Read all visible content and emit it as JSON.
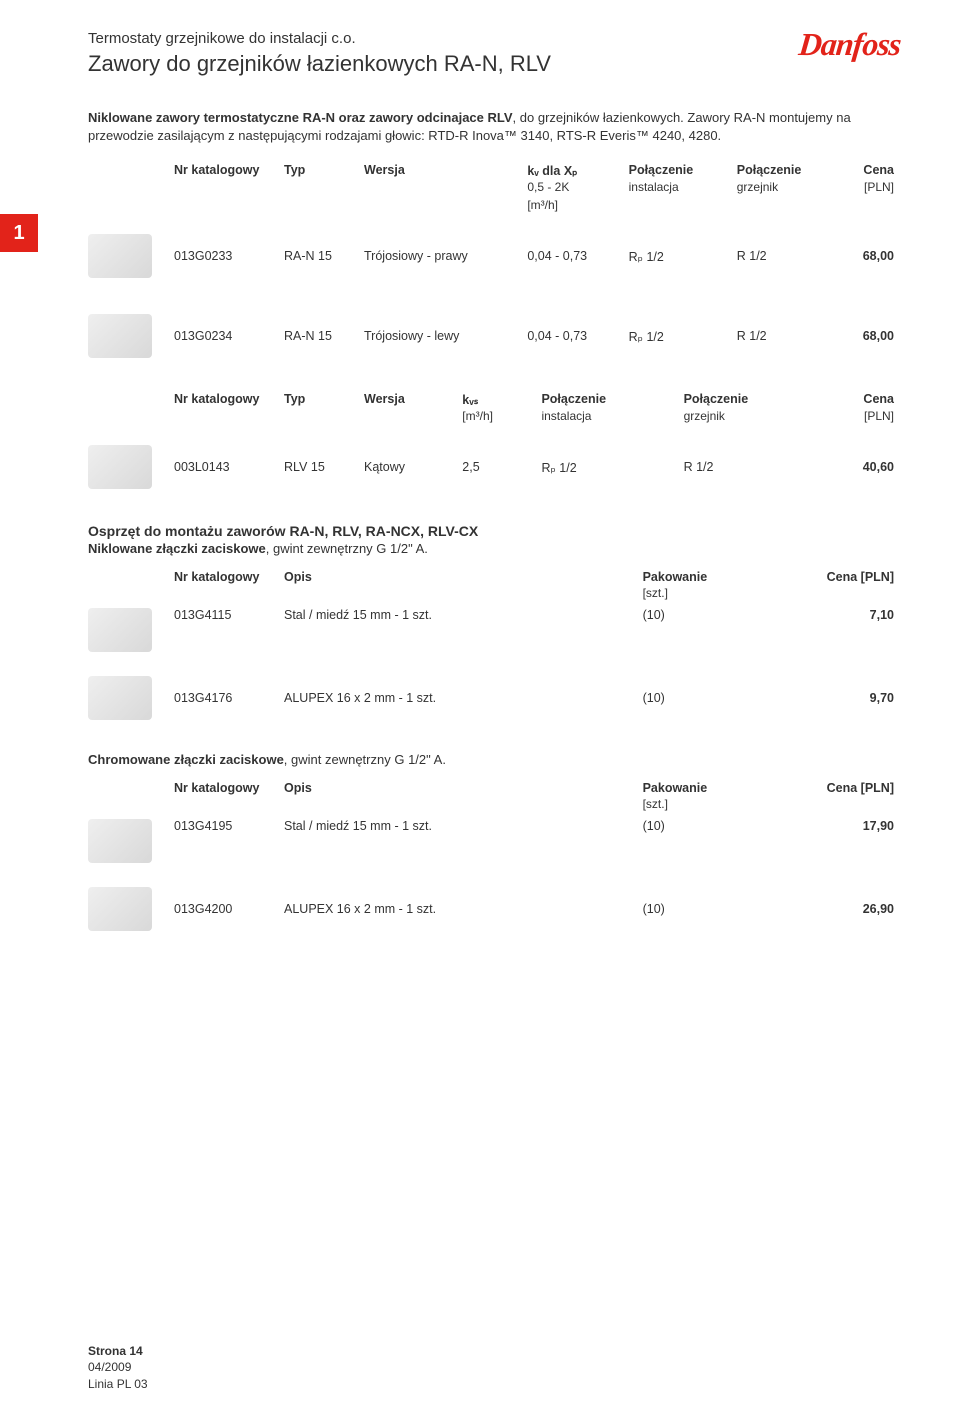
{
  "header": {
    "category": "Termostaty grzejnikowe do instalacji c.o.",
    "title": "Zawory do grzejników łazienkowych RA-N, RLV",
    "logo": "Danfoss"
  },
  "intro": {
    "bold": "Niklowane zawory termostatyczne RA-N oraz zawory odcinajace RLV",
    "rest": ", do grzejników łazienkowych. Zawory RA-N montujemy na przewodzie zasilającym z następującymi rodzajami głowic: RTD-R Inova™ 3140, RTS-R Everis™ 4240, 4280."
  },
  "tab": "1",
  "table1": {
    "headers": {
      "sku": "Nr katalogowy",
      "typ": "Typ",
      "wersja": "Wersja",
      "kv1": "kᵥ dla Xₚ",
      "kv2": "0,5 - 2K",
      "kv3": "[m³/h]",
      "conn_inst": "Połączenie",
      "conn_inst2": "instalacja",
      "conn_grz": "Połączenie",
      "conn_grz2": "grzejnik",
      "cena": "Cena",
      "cena2": "[PLN]"
    },
    "rows": [
      {
        "sku": "013G0233",
        "typ": "RA-N 15",
        "wersja": "Trójosiowy - prawy",
        "kv": "0,04 - 0,73",
        "inst": "Rₚ 1/2",
        "grz": "R 1/2",
        "price": "68,00"
      },
      {
        "sku": "013G0234",
        "typ": "RA-N 15",
        "wersja": "Trójosiowy - lewy",
        "kv": "0,04 - 0,73",
        "inst": "Rₚ 1/2",
        "grz": "R 1/2",
        "price": "68,00"
      }
    ]
  },
  "table2": {
    "headers": {
      "sku": "Nr katalogowy",
      "typ": "Typ",
      "wersja": "Wersja",
      "kvs1": "kᵥₛ",
      "kvs2": "[m³/h]",
      "conn_inst": "Połączenie",
      "conn_inst2": "instalacja",
      "conn_grz": "Połączenie",
      "conn_grz2": "grzejnik",
      "cena": "Cena",
      "cena2": "[PLN]"
    },
    "rows": [
      {
        "sku": "003L0143",
        "typ": "RLV 15",
        "wersja": "Kątowy",
        "kvs": "2,5",
        "inst": "Rₚ 1/2",
        "grz": "R 1/2",
        "price": "40,60"
      }
    ]
  },
  "section3": {
    "heading": "Osprzęt do montażu zaworów RA-N, RLV, RA-NCX, RLV-CX",
    "sub_bold": "Niklowane złączki zaciskowe",
    "sub_rest": ", gwint zewnętrzny G 1/2\" A.",
    "headers": {
      "sku": "Nr katalogowy",
      "opis": "Opis",
      "pak": "Pakowanie",
      "pak2": "[szt.]",
      "cena": "Cena [PLN]"
    },
    "rows": [
      {
        "sku": "013G4115",
        "opis": "Stal / miedź 15 mm - 1 szt.",
        "pak": "(10)",
        "price": "7,10"
      },
      {
        "sku": "013G4176",
        "opis": "ALUPEX 16 x 2 mm - 1 szt.",
        "pak": "(10)",
        "price": "9,70"
      }
    ]
  },
  "section4": {
    "sub_bold": "Chromowane złączki zaciskowe",
    "sub_rest": ", gwint zewnętrzny G 1/2\" A.",
    "headers": {
      "sku": "Nr katalogowy",
      "opis": "Opis",
      "pak": "Pakowanie",
      "pak2": "[szt.]",
      "cena": "Cena [PLN]"
    },
    "rows": [
      {
        "sku": "013G4195",
        "opis": "Stal / miedź 15 mm - 1 szt.",
        "pak": "(10)",
        "price": "17,90"
      },
      {
        "sku": "013G4200",
        "opis": "ALUPEX 16 x 2 mm - 1 szt.",
        "pak": "(10)",
        "price": "26,90"
      }
    ]
  },
  "footer": {
    "page": "Strona 14",
    "date": "04/2009",
    "line": "Linia PL 03"
  }
}
